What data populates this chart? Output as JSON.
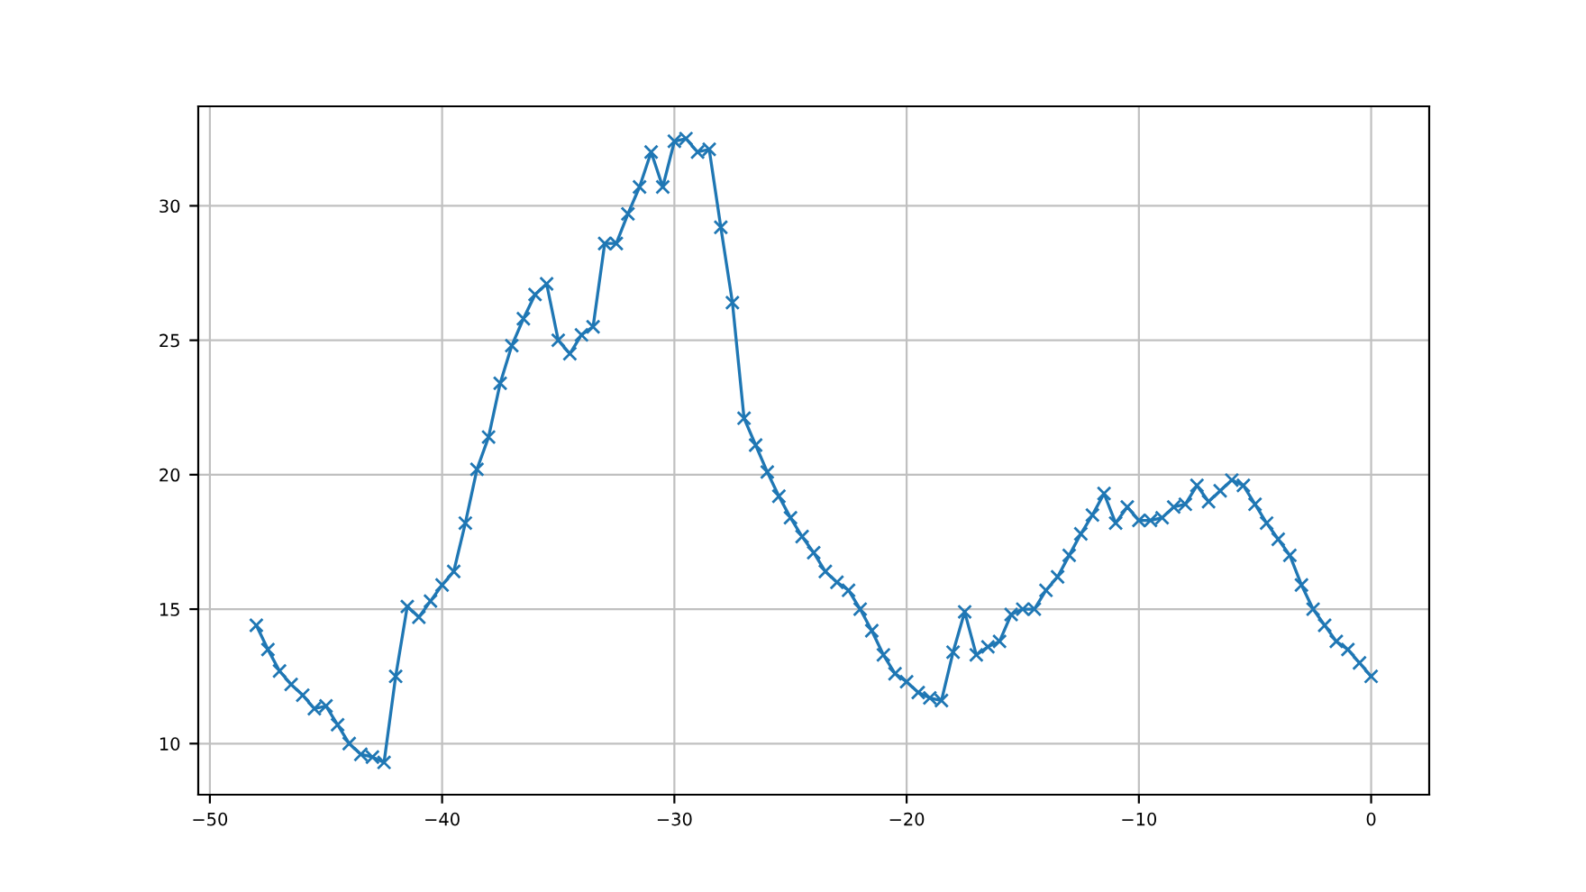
{
  "chart_data": {
    "type": "line",
    "marker": "cross",
    "line_style": "solid",
    "grid": true,
    "xlim": [
      -50.5,
      2.5
    ],
    "ylim": [
      8.1,
      33.7
    ],
    "xticks": [
      {
        "value": -50,
        "label": "−50"
      },
      {
        "value": -40,
        "label": "−40"
      },
      {
        "value": -30,
        "label": "−30"
      },
      {
        "value": -20,
        "label": "−20"
      },
      {
        "value": -10,
        "label": "−10"
      },
      0
    ],
    "yticks": [
      10,
      15,
      20,
      25,
      30
    ],
    "series": [
      {
        "color": "#1f77b4",
        "x": [
          -48,
          -47.5,
          -47,
          -46.5,
          -46,
          -45.5,
          -45,
          -44.5,
          -44,
          -43.5,
          -43,
          -42.5,
          -42,
          -41.5,
          -41,
          -40.5,
          -40,
          -39.5,
          -39,
          -38.5,
          -38,
          -37.5,
          -37,
          -36.5,
          -36,
          -35.5,
          -35,
          -34.5,
          -34,
          -33.5,
          -33,
          -32.5,
          -32,
          -31.5,
          -31,
          -30.5,
          -30,
          -29.5,
          -29,
          -28.5,
          -28,
          -27.5,
          -27,
          -26.5,
          -26,
          -25.5,
          -25,
          -24.5,
          -24,
          -23.5,
          -23,
          -22.5,
          -22,
          -21.5,
          -21,
          -20.5,
          -20,
          -19.5,
          -19,
          -18.5,
          -18,
          -17.5,
          -17,
          -16.5,
          -16,
          -15.5,
          -15,
          -14.5,
          -14,
          -13.5,
          -13,
          -12.5,
          -12,
          -11.5,
          -11,
          -10.5,
          -10,
          -9.5,
          -9,
          -8.5,
          -8,
          -7.5,
          -7,
          -6.5,
          -6,
          -5.5,
          -5,
          -4.5,
          -4,
          -3.5,
          -3,
          -2.5,
          -2,
          -1.5,
          -1,
          -0.5,
          0
        ],
        "values": [
          14.4,
          13.5,
          12.7,
          12.2,
          11.8,
          11.3,
          11.4,
          10.7,
          10.0,
          9.6,
          9.5,
          9.3,
          12.5,
          15.1,
          14.7,
          15.3,
          15.9,
          16.4,
          18.2,
          20.2,
          21.4,
          23.4,
          24.8,
          25.8,
          26.7,
          27.1,
          25.0,
          24.5,
          25.2,
          25.5,
          28.6,
          28.6,
          29.7,
          30.7,
          32.0,
          30.7,
          32.4,
          32.5,
          32.0,
          32.1,
          29.2,
          26.4,
          22.1,
          21.1,
          20.1,
          19.2,
          18.4,
          17.7,
          17.1,
          16.4,
          16.0,
          15.7,
          15.0,
          14.2,
          13.3,
          12.6,
          12.3,
          11.9,
          11.7,
          11.6,
          13.4,
          14.9,
          13.3,
          13.6,
          13.8,
          14.8,
          15.0,
          15.0,
          15.7,
          16.2,
          17.0,
          17.8,
          18.5,
          19.3,
          18.2,
          18.8,
          18.3,
          18.3,
          18.4,
          18.8,
          18.9,
          19.6,
          19.0,
          19.4,
          19.8,
          19.6,
          18.9,
          18.2,
          17.6,
          17.0,
          15.9,
          15.0,
          14.4,
          13.8,
          13.5,
          13.0,
          12.5
        ]
      }
    ]
  }
}
